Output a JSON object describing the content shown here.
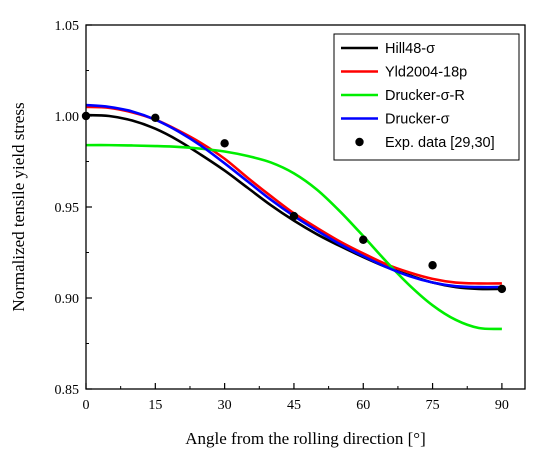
{
  "chart_data": {
    "type": "line",
    "title": "",
    "xlabel": "Angle from the rolling direction [°]",
    "ylabel": "Normalized tensile yield stress",
    "xlim": [
      0,
      95
    ],
    "ylim": [
      0.85,
      1.05
    ],
    "xticks": [
      0,
      15,
      30,
      45,
      60,
      75,
      90
    ],
    "yticks": [
      0.85,
      0.9,
      0.95,
      1.0,
      1.05
    ],
    "xtick_labels": [
      "0",
      "15",
      "30",
      "45",
      "60",
      "75",
      "90"
    ],
    "ytick_labels": [
      "0.85",
      "0.90",
      "0.95",
      "1.00",
      "1.05"
    ],
    "grid": false,
    "legend_position": "top-right",
    "series": [
      {
        "name": "Hill48-σ",
        "type": "line",
        "color": "#000000",
        "x": [
          0,
          5,
          10,
          15,
          20,
          25,
          30,
          35,
          40,
          45,
          50,
          55,
          60,
          65,
          70,
          75,
          80,
          85,
          90
        ],
        "y": [
          1.0005,
          1.0,
          0.9975,
          0.993,
          0.9865,
          0.9785,
          0.97,
          0.9605,
          0.951,
          0.9425,
          0.935,
          0.9285,
          0.9225,
          0.917,
          0.9125,
          0.9085,
          0.906,
          0.905,
          0.905
        ]
      },
      {
        "name": "Yld2004-18p",
        "type": "line",
        "color": "#ff0000",
        "x": [
          0,
          5,
          10,
          15,
          20,
          25,
          30,
          35,
          40,
          45,
          50,
          55,
          60,
          65,
          70,
          75,
          80,
          85,
          90
        ],
        "y": [
          1.005,
          1.0045,
          1.002,
          0.998,
          0.992,
          0.985,
          0.9765,
          0.966,
          0.956,
          0.9465,
          0.9385,
          0.931,
          0.9245,
          0.9185,
          0.914,
          0.9105,
          0.9085,
          0.908,
          0.908
        ]
      },
      {
        "name": "Drucker-σ-R",
        "type": "line",
        "color": "#00ee00",
        "x": [
          0,
          5,
          10,
          15,
          20,
          25,
          30,
          35,
          40,
          45,
          50,
          55,
          60,
          65,
          70,
          75,
          80,
          85,
          90
        ],
        "y": [
          0.984,
          0.984,
          0.9838,
          0.9835,
          0.983,
          0.982,
          0.9805,
          0.978,
          0.9745,
          0.9685,
          0.9595,
          0.9475,
          0.934,
          0.92,
          0.907,
          0.896,
          0.888,
          0.8835,
          0.883
        ]
      },
      {
        "name": "Drucker-σ",
        "type": "line",
        "color": "#0000ff",
        "x": [
          0,
          5,
          10,
          15,
          20,
          25,
          30,
          35,
          40,
          45,
          50,
          55,
          60,
          65,
          70,
          75,
          80,
          85,
          90
        ],
        "y": [
          1.006,
          1.005,
          1.0025,
          0.998,
          0.9915,
          0.9835,
          0.974,
          0.964,
          0.954,
          0.945,
          0.937,
          0.9295,
          0.923,
          0.917,
          0.912,
          0.9085,
          0.9065,
          0.906,
          0.906
        ]
      },
      {
        "name": "Exp. data [29,30]",
        "type": "scatter",
        "color": "#000000",
        "x": [
          0,
          15,
          30,
          45,
          60,
          75,
          90
        ],
        "y": [
          1.0,
          0.999,
          0.985,
          0.945,
          0.932,
          0.918,
          0.905
        ]
      }
    ]
  }
}
